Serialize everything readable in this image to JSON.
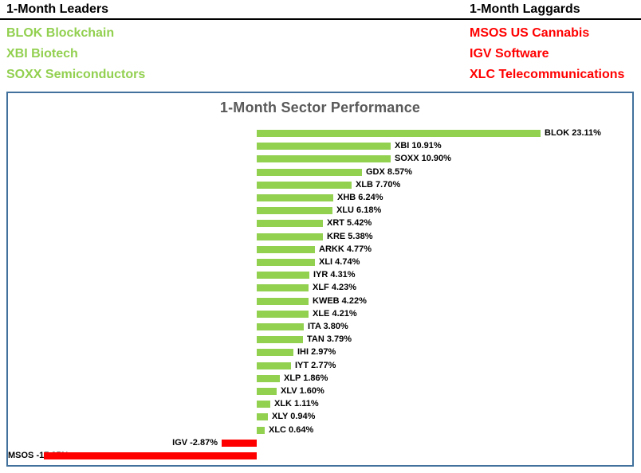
{
  "header": {
    "leaders": {
      "title": "1-Month Leaders",
      "items": [
        "BLOK Blockchain",
        "XBI Biotech",
        "SOXX Semiconductors"
      ]
    },
    "laggards": {
      "title": "1-Month Laggards",
      "items": [
        "MSOS US Cannabis",
        "IGV Software",
        "XLC Telecommunications"
      ]
    }
  },
  "chart_data": {
    "type": "bar",
    "orientation": "horizontal",
    "title": "1-Month Sector Performance",
    "categories": [
      "BLOK",
      "XBI",
      "SOXX",
      "GDX",
      "XLB",
      "XHB",
      "XLU",
      "XRT",
      "KRE",
      "ARKK",
      "XLI",
      "IYR",
      "XLF",
      "KWEB",
      "XLE",
      "ITA",
      "TAN",
      "IHI",
      "IYT",
      "XLP",
      "XLV",
      "XLK",
      "XLY",
      "XLC",
      "IGV",
      "MSOS"
    ],
    "values": [
      23.11,
      10.91,
      10.9,
      8.57,
      7.7,
      6.24,
      6.18,
      5.42,
      5.38,
      4.77,
      4.74,
      4.31,
      4.23,
      4.22,
      4.21,
      3.8,
      3.79,
      2.97,
      2.77,
      1.86,
      1.6,
      1.11,
      0.94,
      0.64,
      -2.87,
      -17.35
    ],
    "value_suffix": "%",
    "xlim": [
      -18,
      24
    ],
    "grid": false,
    "legend": "none",
    "value_labels": "outside-end",
    "positive_color": "#92D050",
    "negative_color": "#FF0000"
  },
  "colors": {
    "leaders_text": "#92D050",
    "laggards_text": "#FF0000",
    "header_text": "#000000",
    "chart_border": "#41719C",
    "chart_title_text": "#595959",
    "bar_label_text": "#000000",
    "background": "#FFFFFF"
  }
}
